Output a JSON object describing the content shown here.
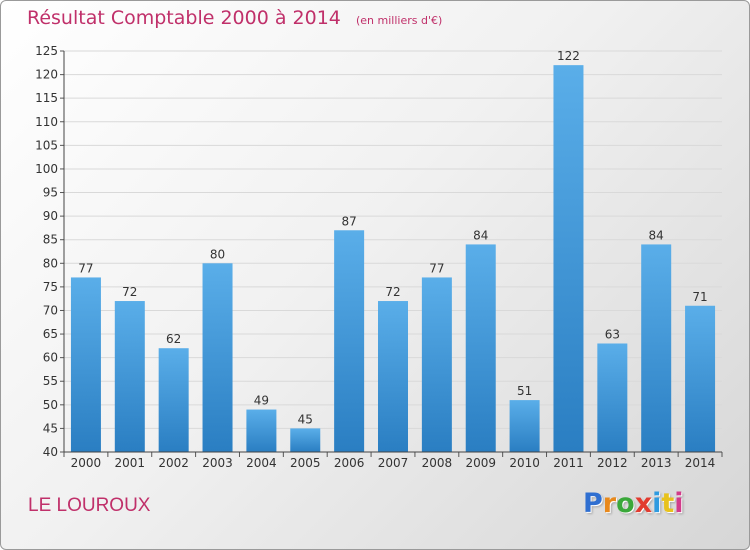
{
  "title": "Résultat Comptable 2000 à 2014",
  "unit": "(en milliers d'€)",
  "town": "LE LOUROUX",
  "logo": {
    "letters": [
      "P",
      "r",
      "o",
      "x",
      "i",
      "t",
      "i"
    ],
    "colors": [
      "#2f6fd1",
      "#e8891c",
      "#3aa83a",
      "#e23b2f",
      "#2f9be0",
      "#e8c21c",
      "#d23b8a"
    ]
  },
  "colors": {
    "bar_top": "#5aaee9",
    "bar_bottom": "#2a7ec2",
    "accent": "#c0306a"
  },
  "chart_data": {
    "type": "bar",
    "title": "Résultat Comptable 2000 à 2014",
    "xlabel": "",
    "ylabel": "",
    "ylim": [
      40,
      125
    ],
    "yticks": [
      40,
      45,
      50,
      55,
      60,
      65,
      70,
      75,
      80,
      85,
      90,
      95,
      100,
      105,
      110,
      115,
      120,
      125
    ],
    "grid": true,
    "categories": [
      "2000",
      "2001",
      "2002",
      "2003",
      "2004",
      "2005",
      "2006",
      "2007",
      "2008",
      "2009",
      "2010",
      "2011",
      "2012",
      "2013",
      "2014"
    ],
    "values": [
      77,
      72,
      62,
      80,
      49,
      45,
      87,
      72,
      77,
      84,
      51,
      122,
      63,
      84,
      71
    ]
  }
}
